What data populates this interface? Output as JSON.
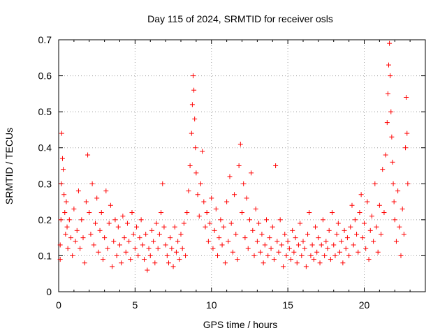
{
  "chart_data": {
    "type": "scatter",
    "title": "Day 115 of 2024, SRMTID for receiver osls",
    "xlabel": "GPS time / hours",
    "ylabel": "SRMTID / TECUs",
    "xlim": [
      0,
      24
    ],
    "ylim": [
      0,
      0.7
    ],
    "xticks": [
      "0",
      "5",
      "10",
      "15",
      "20"
    ],
    "xtick_values": [
      0,
      5,
      10,
      15,
      20
    ],
    "yticks": [
      "0",
      "0.1",
      "0.2",
      "0.3",
      "0.4",
      "0.5",
      "0.6",
      "0.7"
    ],
    "ytick_values": [
      0,
      0.1,
      0.2,
      0.3,
      0.4,
      0.5,
      0.6,
      0.7
    ],
    "grid": true,
    "marker": "plus",
    "marker_color": "#ff0000",
    "series": [
      {
        "name": "SRMTID",
        "points": [
          [
            0.1,
            0.09
          ],
          [
            0.1,
            0.13
          ],
          [
            0.15,
            0.2
          ],
          [
            0.18,
            0.3
          ],
          [
            0.2,
            0.44
          ],
          [
            0.25,
            0.37
          ],
          [
            0.3,
            0.34
          ],
          [
            0.35,
            0.27
          ],
          [
            0.4,
            0.22
          ],
          [
            0.45,
            0.16
          ],
          [
            0.5,
            0.25
          ],
          [
            0.55,
            0.18
          ],
          [
            0.6,
            0.12
          ],
          [
            0.7,
            0.2
          ],
          [
            0.8,
            0.15
          ],
          [
            0.9,
            0.1
          ],
          [
            1.0,
            0.23
          ],
          [
            1.1,
            0.14
          ],
          [
            1.2,
            0.17
          ],
          [
            1.3,
            0.28
          ],
          [
            1.4,
            0.12
          ],
          [
            1.5,
            0.2
          ],
          [
            1.6,
            0.15
          ],
          [
            1.7,
            0.08
          ],
          [
            1.8,
            0.25
          ],
          [
            1.9,
            0.38
          ],
          [
            2.0,
            0.22
          ],
          [
            2.1,
            0.16
          ],
          [
            2.2,
            0.3
          ],
          [
            2.3,
            0.13
          ],
          [
            2.4,
            0.19
          ],
          [
            2.5,
            0.26
          ],
          [
            2.6,
            0.11
          ],
          [
            2.7,
            0.17
          ],
          [
            2.8,
            0.22
          ],
          [
            2.9,
            0.09
          ],
          [
            3.0,
            0.15
          ],
          [
            3.1,
            0.28
          ],
          [
            3.2,
            0.12
          ],
          [
            3.3,
            0.19
          ],
          [
            3.4,
            0.24
          ],
          [
            3.5,
            0.07
          ],
          [
            3.6,
            0.14
          ],
          [
            3.7,
            0.2
          ],
          [
            3.8,
            0.1
          ],
          [
            3.9,
            0.18
          ],
          [
            4.0,
            0.13
          ],
          [
            4.1,
            0.08
          ],
          [
            4.2,
            0.21
          ],
          [
            4.3,
            0.15
          ],
          [
            4.4,
            0.11
          ],
          [
            4.5,
            0.19
          ],
          [
            4.6,
            0.14
          ],
          [
            4.7,
            0.09
          ],
          [
            4.8,
            0.22
          ],
          [
            4.9,
            0.16
          ],
          [
            5.0,
            0.12
          ],
          [
            5.1,
            0.18
          ],
          [
            5.2,
            0.1
          ],
          [
            5.3,
            0.15
          ],
          [
            5.4,
            0.2
          ],
          [
            5.5,
            0.13
          ],
          [
            5.6,
            0.09
          ],
          [
            5.7,
            0.16
          ],
          [
            5.8,
            0.06
          ],
          [
            5.9,
            0.12
          ],
          [
            6.0,
            0.1
          ],
          [
            6.1,
            0.17
          ],
          [
            6.2,
            0.14
          ],
          [
            6.3,
            0.08
          ],
          [
            6.4,
            0.19
          ],
          [
            6.5,
            0.12
          ],
          [
            6.6,
            0.16
          ],
          [
            6.7,
            0.22
          ],
          [
            6.8,
            0.3
          ],
          [
            6.9,
            0.18
          ],
          [
            7.0,
            0.13
          ],
          [
            7.1,
            0.1
          ],
          [
            7.2,
            0.08
          ],
          [
            7.3,
            0.15
          ],
          [
            7.4,
            0.12
          ],
          [
            7.5,
            0.07
          ],
          [
            7.6,
            0.18
          ],
          [
            7.7,
            0.11
          ],
          [
            7.8,
            0.14
          ],
          [
            7.9,
            0.09
          ],
          [
            8.0,
            0.16
          ],
          [
            8.1,
            0.12
          ],
          [
            8.2,
            0.19
          ],
          [
            8.3,
            0.1
          ],
          [
            8.4,
            0.22
          ],
          [
            8.5,
            0.28
          ],
          [
            8.6,
            0.35
          ],
          [
            8.7,
            0.44
          ],
          [
            8.75,
            0.52
          ],
          [
            8.8,
            0.6
          ],
          [
            8.85,
            0.56
          ],
          [
            8.9,
            0.48
          ],
          [
            8.95,
            0.4
          ],
          [
            9.0,
            0.33
          ],
          [
            9.1,
            0.27
          ],
          [
            9.2,
            0.21
          ],
          [
            9.3,
            0.3
          ],
          [
            9.4,
            0.39
          ],
          [
            9.5,
            0.25
          ],
          [
            9.6,
            0.18
          ],
          [
            9.7,
            0.22
          ],
          [
            9.8,
            0.14
          ],
          [
            9.9,
            0.19
          ],
          [
            10.0,
            0.26
          ],
          [
            10.1,
            0.12
          ],
          [
            10.2,
            0.17
          ],
          [
            10.3,
            0.23
          ],
          [
            10.4,
            0.1
          ],
          [
            10.5,
            0.15
          ],
          [
            10.6,
            0.2
          ],
          [
            10.7,
            0.13
          ],
          [
            10.8,
            0.18
          ],
          [
            10.9,
            0.08
          ],
          [
            11.0,
            0.25
          ],
          [
            11.1,
            0.14
          ],
          [
            11.2,
            0.32
          ],
          [
            11.3,
            0.19
          ],
          [
            11.4,
            0.11
          ],
          [
            11.5,
            0.27
          ],
          [
            11.6,
            0.16
          ],
          [
            11.7,
            0.09
          ],
          [
            11.8,
            0.35
          ],
          [
            11.9,
            0.41
          ],
          [
            12.0,
            0.22
          ],
          [
            12.1,
            0.3
          ],
          [
            12.2,
            0.15
          ],
          [
            12.3,
            0.26
          ],
          [
            12.4,
            0.12
          ],
          [
            12.5,
            0.2
          ],
          [
            12.6,
            0.33
          ],
          [
            12.7,
            0.17
          ],
          [
            12.8,
            0.1
          ],
          [
            12.9,
            0.23
          ],
          [
            13.0,
            0.14
          ],
          [
            13.1,
            0.19
          ],
          [
            13.2,
            0.11
          ],
          [
            13.3,
            0.16
          ],
          [
            13.4,
            0.08
          ],
          [
            13.5,
            0.13
          ],
          [
            13.6,
            0.2
          ],
          [
            13.7,
            0.1
          ],
          [
            13.8,
            0.15
          ],
          [
            13.9,
            0.12
          ],
          [
            14.0,
            0.18
          ],
          [
            14.1,
            0.09
          ],
          [
            14.2,
            0.35
          ],
          [
            14.3,
            0.14
          ],
          [
            14.4,
            0.11
          ],
          [
            14.5,
            0.2
          ],
          [
            14.6,
            0.13
          ],
          [
            14.7,
            0.07
          ],
          [
            14.8,
            0.16
          ],
          [
            14.9,
            0.1
          ],
          [
            15.0,
            0.14
          ],
          [
            15.1,
            0.12
          ],
          [
            15.2,
            0.09
          ],
          [
            15.3,
            0.17
          ],
          [
            15.4,
            0.11
          ],
          [
            15.5,
            0.15
          ],
          [
            15.6,
            0.08
          ],
          [
            15.7,
            0.13
          ],
          [
            15.8,
            0.19
          ],
          [
            15.9,
            0.1
          ],
          [
            16.0,
            0.14
          ],
          [
            16.1,
            0.12
          ],
          [
            16.2,
            0.07
          ],
          [
            16.3,
            0.16
          ],
          [
            16.4,
            0.22
          ],
          [
            16.5,
            0.1
          ],
          [
            16.6,
            0.13
          ],
          [
            16.7,
            0.09
          ],
          [
            16.8,
            0.18
          ],
          [
            16.9,
            0.11
          ],
          [
            17.0,
            0.15
          ],
          [
            17.1,
            0.08
          ],
          [
            17.2,
            0.13
          ],
          [
            17.3,
            0.2
          ],
          [
            17.4,
            0.1
          ],
          [
            17.5,
            0.14
          ],
          [
            17.6,
            0.12
          ],
          [
            17.7,
            0.17
          ],
          [
            17.8,
            0.09
          ],
          [
            17.9,
            0.22
          ],
          [
            18.0,
            0.13
          ],
          [
            18.1,
            0.1
          ],
          [
            18.2,
            0.16
          ],
          [
            18.3,
            0.19
          ],
          [
            18.4,
            0.11
          ],
          [
            18.5,
            0.14
          ],
          [
            18.6,
            0.08
          ],
          [
            18.7,
            0.17
          ],
          [
            18.8,
            0.12
          ],
          [
            18.9,
            0.15
          ],
          [
            19.0,
            0.1
          ],
          [
            19.1,
            0.18
          ],
          [
            19.2,
            0.24
          ],
          [
            19.3,
            0.13
          ],
          [
            19.4,
            0.2
          ],
          [
            19.5,
            0.16
          ],
          [
            19.6,
            0.11
          ],
          [
            19.7,
            0.22
          ],
          [
            19.8,
            0.27
          ],
          [
            19.9,
            0.15
          ],
          [
            20.0,
            0.19
          ],
          [
            20.1,
            0.12
          ],
          [
            20.2,
            0.25
          ],
          [
            20.3,
            0.09
          ],
          [
            20.4,
            0.17
          ],
          [
            20.5,
            0.21
          ],
          [
            20.6,
            0.14
          ],
          [
            20.7,
            0.3
          ],
          [
            20.8,
            0.18
          ],
          [
            20.9,
            0.11
          ],
          [
            21.0,
            0.24
          ],
          [
            21.1,
            0.16
          ],
          [
            21.2,
            0.34
          ],
          [
            21.3,
            0.22
          ],
          [
            21.4,
            0.38
          ],
          [
            21.5,
            0.47
          ],
          [
            21.55,
            0.55
          ],
          [
            21.6,
            0.63
          ],
          [
            21.65,
            0.69
          ],
          [
            21.7,
            0.6
          ],
          [
            21.75,
            0.5
          ],
          [
            21.8,
            0.43
          ],
          [
            21.85,
            0.36
          ],
          [
            21.9,
            0.3
          ],
          [
            21.95,
            0.25
          ],
          [
            22.0,
            0.2
          ],
          [
            22.1,
            0.14
          ],
          [
            22.2,
            0.28
          ],
          [
            22.3,
            0.18
          ],
          [
            22.4,
            0.1
          ],
          [
            22.5,
            0.23
          ],
          [
            22.6,
            0.16
          ],
          [
            22.7,
            0.4
          ],
          [
            22.75,
            0.54
          ],
          [
            22.8,
            0.44
          ],
          [
            22.85,
            0.3
          ]
        ]
      }
    ]
  }
}
